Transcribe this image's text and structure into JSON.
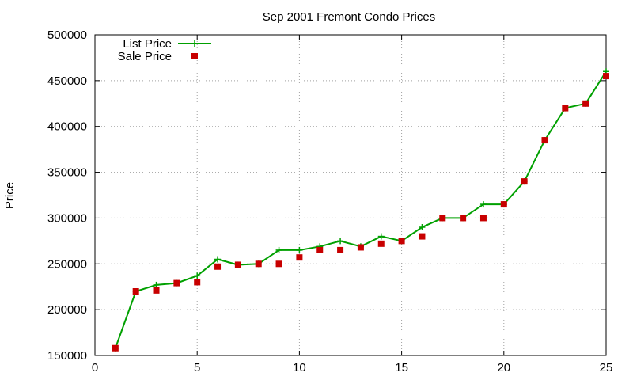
{
  "chart_data": {
    "type": "line",
    "title": "Sep 2001 Fremont Condo Prices",
    "xlabel": "",
    "ylabel": "Price",
    "xlim": [
      0,
      25
    ],
    "ylim": [
      150000,
      500000
    ],
    "x_ticks": [
      0,
      5,
      10,
      15,
      20,
      25
    ],
    "y_ticks": [
      150000,
      200000,
      250000,
      300000,
      350000,
      400000,
      450000,
      500000
    ],
    "grid": true,
    "legend_position": "top-left",
    "series": [
      {
        "name": "List Price",
        "style": "line-plus-markers",
        "color": "#00a000",
        "x": [
          1,
          2,
          3,
          4,
          5,
          6,
          7,
          8,
          9,
          10,
          11,
          12,
          13,
          14,
          15,
          16,
          17,
          18,
          19,
          20,
          21,
          22,
          23,
          24,
          25
        ],
        "y": [
          158000,
          220000,
          227000,
          229000,
          237000,
          255000,
          249000,
          250000,
          265000,
          265000,
          269000,
          275000,
          269000,
          280000,
          275000,
          290000,
          300000,
          300000,
          315000,
          315000,
          340000,
          385000,
          420000,
          425000,
          460000
        ]
      },
      {
        "name": "Sale Price",
        "style": "square-markers",
        "color": "#c80000",
        "x": [
          1,
          2,
          3,
          4,
          5,
          6,
          7,
          8,
          9,
          10,
          11,
          12,
          13,
          14,
          15,
          16,
          17,
          18,
          19,
          20,
          21,
          22,
          23,
          24,
          25
        ],
        "y": [
          158000,
          220000,
          221000,
          229000,
          230000,
          247000,
          249000,
          250000,
          250000,
          257000,
          265000,
          265000,
          268000,
          272000,
          275000,
          280000,
          300000,
          300000,
          300000,
          315000,
          340000,
          385000,
          420000,
          425000,
          455000
        ]
      }
    ]
  }
}
